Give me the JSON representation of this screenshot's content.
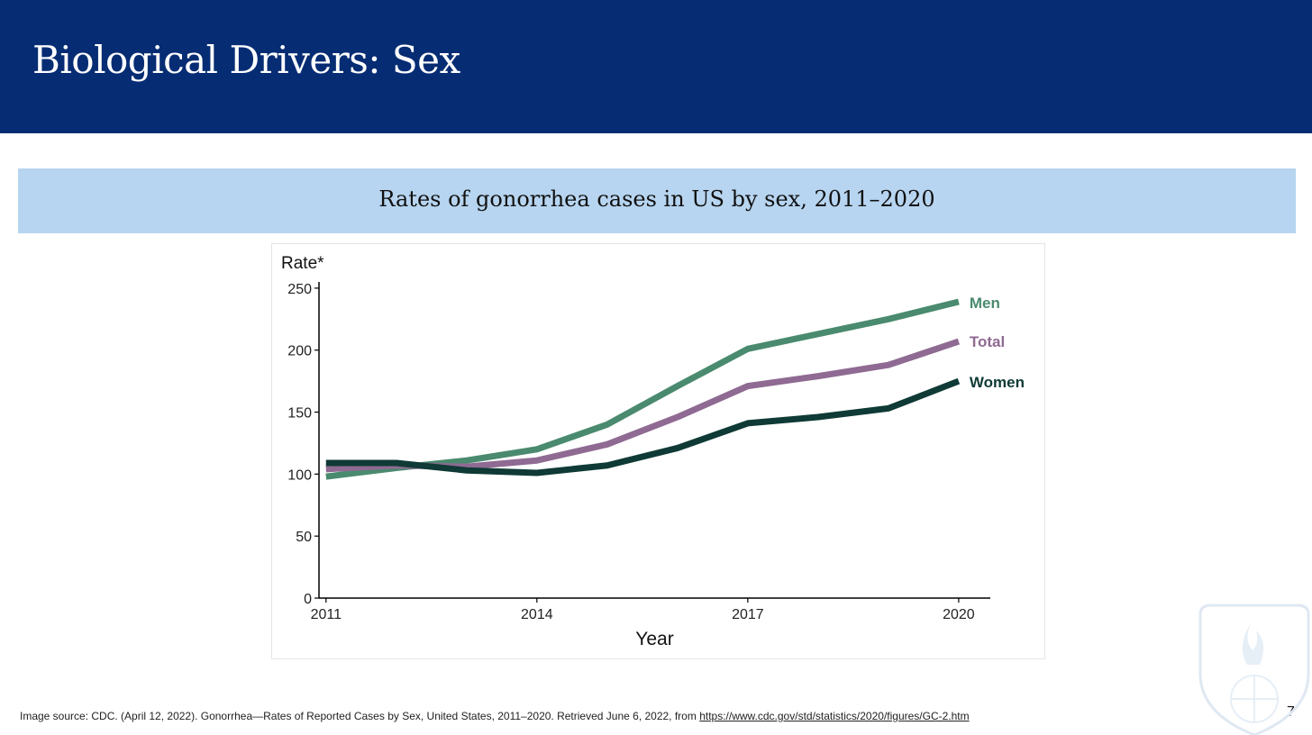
{
  "slide": {
    "title": "Biological Drivers: Sex",
    "page_number": "7"
  },
  "banner": {
    "title": "Rates of gonorrhea cases in US by sex, 2011–2020"
  },
  "footer": {
    "source_text": "Image source: CDC. (April 12, 2022). Gonorrhea—Rates of Reported Cases by Sex, United States, 2011–2020. Retrieved June 6, 2022, from ",
    "source_link": "https://www.cdc.gov/std/statistics/2020/figures/GC-2.htm"
  },
  "colors": {
    "header_bg": "#062c73",
    "banner_bg": "#b7d5f0",
    "men": "#4a8a6e",
    "total": "#8f6a93",
    "women": "#0f3a35"
  },
  "chart_data": {
    "type": "line",
    "title": "",
    "xlabel": "Year",
    "ylabel": "Rate*",
    "x": [
      2011,
      2012,
      2013,
      2014,
      2015,
      2016,
      2017,
      2018,
      2019,
      2020
    ],
    "xticks": [
      2011,
      2014,
      2017,
      2020
    ],
    "yticks": [
      0,
      50,
      100,
      150,
      200,
      250
    ],
    "xlim": [
      2010.9,
      2020.45
    ],
    "ylim": [
      0,
      255
    ],
    "grid": false,
    "legend": "direct labels at line ends",
    "series": [
      {
        "name": "Men",
        "color": "#4a8a6e",
        "values": [
          98,
          105,
          111,
          120,
          140,
          171,
          201,
          213,
          225,
          239
        ]
      },
      {
        "name": "Total",
        "color": "#8f6a93",
        "values": [
          104,
          107,
          106,
          111,
          124,
          146,
          171,
          179,
          188,
          207
        ]
      },
      {
        "name": "Women",
        "color": "#0f3a35",
        "values": [
          109,
          109,
          103,
          101,
          107,
          121,
          141,
          146,
          153,
          175
        ]
      }
    ]
  }
}
